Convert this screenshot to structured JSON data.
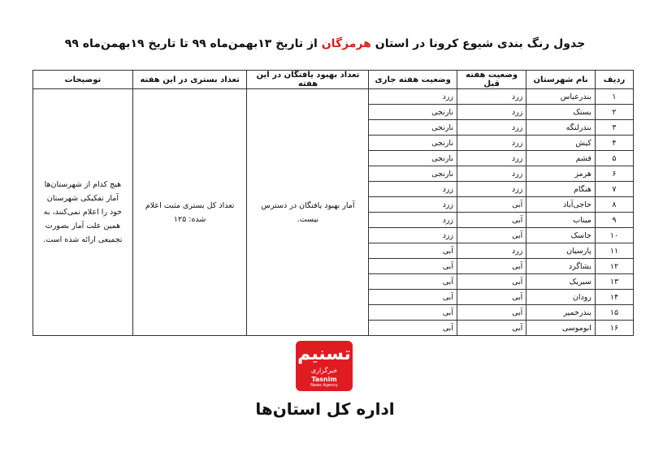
{
  "title": {
    "before": "جدول رنگ بندی شیوع کرونا در استان",
    "highlight": "هرمزگان",
    "after": "از تاریخ ۱۳بهمن‌ماه ۹۹ تا تاریخ ۱۹بهمن‌ماه ۹۹"
  },
  "table": {
    "headers": [
      "ردیف",
      "نام شهرستان",
      "وضعیت هفته قبل",
      "وضعیت هفته جاری",
      "تعداد بهبود یافتگان در این هفته",
      "تعداد بستری در این هفته",
      "توضیحات"
    ],
    "rows": [
      [
        "۱",
        "بندرعباس",
        "زرد",
        "زرد"
      ],
      [
        "۲",
        "بستک",
        "زرد",
        "نارنجی"
      ],
      [
        "۳",
        "بندرلنگه",
        "زرد",
        "نارنجی"
      ],
      [
        "۴",
        "کیش",
        "زرد",
        "نارنجی"
      ],
      [
        "۵",
        "قشم",
        "زرد",
        "نارنجی"
      ],
      [
        "۶",
        "هرمز",
        "زرد",
        "نارنجی"
      ],
      [
        "۷",
        "هنگام",
        "زرد",
        "زرد"
      ],
      [
        "۸",
        "حاجی‌آباد",
        "آبی",
        "زرد"
      ],
      [
        "۹",
        "میناب",
        "آبی",
        "زرد"
      ],
      [
        "۱۰",
        "جاسک",
        "آبی",
        "زرد"
      ],
      [
        "۱۱",
        "پارسیان",
        "زرد",
        "آبی"
      ],
      [
        "۱۲",
        "بشاگرد",
        "آبی",
        "آبی"
      ],
      [
        "۱۳",
        "سیریک",
        "آبی",
        "آبی"
      ],
      [
        "۱۴",
        "رودان",
        "آبی",
        "آبی"
      ],
      [
        "۱۵",
        "بندرخمیر",
        "آبی",
        "آبی"
      ],
      [
        "۱۶",
        "ابوموسی",
        "آبی",
        "آبی"
      ]
    ],
    "recovered": "آمار بهبود یافتگان در دسترس نیست.",
    "hospitalized": "تعداد کل بستری مثبت اعلام شده: ۱۲۵",
    "notes": "هیچ کدام از شهرستان‌ها آمار تفکیکی شهرستان خود را اعلام نمی‌کنند، به همین علت آمار بصورت تجمیعی ارائه شده است."
  },
  "footer": {
    "logo": "تسنیم",
    "agency": "خبرگزاری",
    "brand": "Tasnim",
    "brand_sub": "News Agency",
    "department": "اداره کل استان‌ها"
  }
}
